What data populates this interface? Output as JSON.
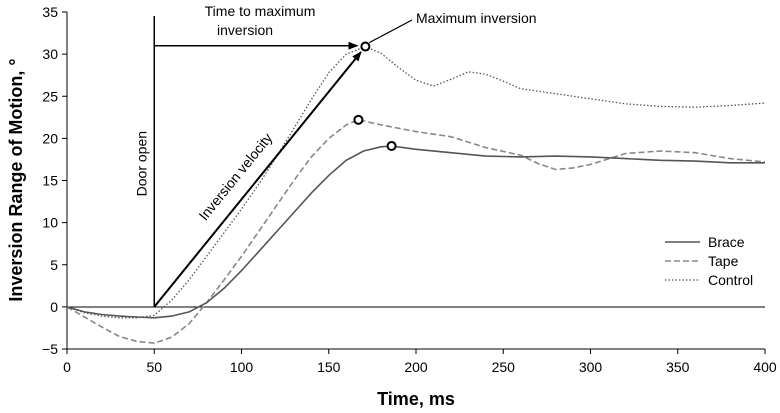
{
  "chart_data": {
    "type": "line",
    "title": "",
    "xlabel": "Time, ms",
    "ylabel": "Inversion Range of Motion, °",
    "xlim": [
      0,
      400
    ],
    "ylim": [
      -5,
      35
    ],
    "x_ticks": [
      "0",
      "50",
      "100",
      "150",
      "200",
      "250",
      "300",
      "350",
      "400"
    ],
    "y_ticks": [
      "−5",
      "0",
      "5",
      "10",
      "15",
      "20",
      "25",
      "30",
      "35"
    ],
    "legend_position": "right",
    "series": [
      {
        "name": "Brace",
        "style": "solid",
        "color": "#555555",
        "x": [
          0,
          10,
          20,
          30,
          40,
          50,
          60,
          70,
          80,
          90,
          100,
          110,
          120,
          130,
          140,
          150,
          160,
          170,
          180,
          186,
          200,
          220,
          240,
          260,
          280,
          300,
          320,
          340,
          360,
          380,
          400
        ],
        "y": [
          0,
          -0.6,
          -0.9,
          -1.1,
          -1.2,
          -1.3,
          -1.1,
          -0.6,
          0.5,
          2.2,
          4.3,
          6.6,
          8.9,
          11.2,
          13.5,
          15.6,
          17.4,
          18.5,
          19.0,
          19.1,
          18.7,
          18.3,
          17.9,
          17.8,
          17.9,
          17.8,
          17.6,
          17.4,
          17.3,
          17.1,
          17.1
        ]
      },
      {
        "name": "Tape",
        "style": "dashed",
        "color": "#888888",
        "x": [
          0,
          10,
          20,
          30,
          40,
          50,
          60,
          70,
          80,
          90,
          100,
          110,
          120,
          130,
          140,
          150,
          160,
          167,
          180,
          200,
          220,
          240,
          260,
          270,
          280,
          290,
          300,
          320,
          340,
          360,
          380,
          400
        ],
        "y": [
          0,
          -1.2,
          -2.4,
          -3.5,
          -4.1,
          -4.3,
          -3.6,
          -2.0,
          0.5,
          3.2,
          6.0,
          9.0,
          12.0,
          15.0,
          17.8,
          20.0,
          21.6,
          22.2,
          21.6,
          20.8,
          20.2,
          18.9,
          18.0,
          17.0,
          16.3,
          16.5,
          16.9,
          18.2,
          18.5,
          18.3,
          17.6,
          17.2
        ]
      },
      {
        "name": "Control",
        "style": "dotted",
        "color": "#555555",
        "x": [
          0,
          10,
          20,
          30,
          40,
          50,
          60,
          70,
          80,
          90,
          100,
          110,
          120,
          130,
          140,
          150,
          160,
          171,
          180,
          190,
          200,
          210,
          220,
          230,
          240,
          250,
          260,
          280,
          300,
          320,
          340,
          360,
          380,
          400
        ],
        "y": [
          0,
          -0.7,
          -1.1,
          -1.3,
          -1.3,
          -1.0,
          0.8,
          3.2,
          6.0,
          8.8,
          11.6,
          14.6,
          17.8,
          21.2,
          24.6,
          27.8,
          30.0,
          30.9,
          30.1,
          28.4,
          26.9,
          26.2,
          27.0,
          27.9,
          27.6,
          26.8,
          25.9,
          25.3,
          24.7,
          24.1,
          23.8,
          23.7,
          23.9,
          24.2
        ]
      }
    ],
    "markers": [
      {
        "series": "Control",
        "x": 171,
        "y": 30.9
      },
      {
        "series": "Tape",
        "x": 167,
        "y": 22.2
      },
      {
        "series": "Brace",
        "x": 186,
        "y": 19.1
      }
    ],
    "annotations": {
      "door_open": {
        "text": "Door open",
        "x": 50
      },
      "time_to_max": {
        "line1": "Time to maximum",
        "line2": "inversion",
        "arrow_y": 31,
        "arrow_x_from": 50,
        "arrow_x_to": 171
      },
      "inversion_velocity": {
        "text": "Inversion velocity",
        "from": [
          50,
          0
        ],
        "to": [
          171,
          30.9
        ]
      },
      "maximum_inversion": {
        "text": "Maximum inversion",
        "points_to": [
          171,
          30.9
        ]
      }
    }
  }
}
